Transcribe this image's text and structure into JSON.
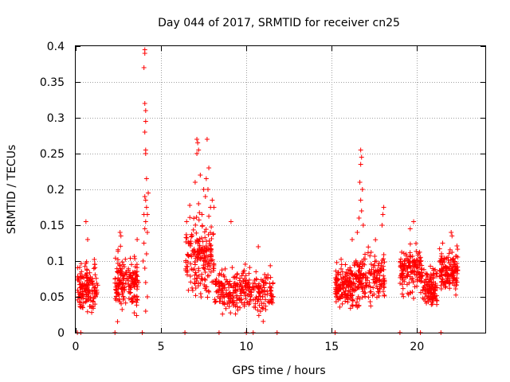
{
  "chart_data": {
    "type": "scatter",
    "title": "Day 044 of 2017, SRMTID for receiver cn25",
    "xlabel": "GPS time / hours",
    "ylabel": "SRMTID / TECUs",
    "xlim": [
      0,
      24
    ],
    "ylim": [
      0,
      0.4
    ],
    "xticks": [
      0,
      5,
      10,
      15,
      20
    ],
    "xtick_labels": [
      "0",
      "5",
      "10",
      "15",
      "20"
    ],
    "yticks": [
      0,
      0.05,
      0.1,
      0.15,
      0.2,
      0.25,
      0.3,
      0.35,
      0.4
    ],
    "ytick_labels": [
      "0",
      "0.05",
      "0.1",
      "0.15",
      "0.2",
      "0.25",
      "0.3",
      "0.35",
      "0.4"
    ],
    "grid": true,
    "marker": "+",
    "color": "#ff0000",
    "clusters": [
      {
        "x_start": 0.1,
        "x_end": 1.3,
        "y_center": 0.06,
        "y_spread": 0.03,
        "n": 150
      },
      {
        "x_start": 2.3,
        "x_end": 3.7,
        "y_center": 0.07,
        "y_spread": 0.035,
        "n": 180
      },
      {
        "x_start": 6.4,
        "x_end": 8.1,
        "y_center": 0.11,
        "y_spread": 0.05,
        "n": 200
      },
      {
        "x_start": 8.1,
        "x_end": 10.0,
        "y_center": 0.06,
        "y_spread": 0.03,
        "n": 180
      },
      {
        "x_start": 10.0,
        "x_end": 11.6,
        "y_center": 0.055,
        "y_spread": 0.025,
        "n": 120
      },
      {
        "x_start": 15.2,
        "x_end": 16.3,
        "y_center": 0.065,
        "y_spread": 0.03,
        "n": 150
      },
      {
        "x_start": 16.3,
        "x_end": 18.1,
        "y_center": 0.075,
        "y_spread": 0.035,
        "n": 190
      },
      {
        "x_start": 19.0,
        "x_end": 20.3,
        "y_center": 0.085,
        "y_spread": 0.03,
        "n": 150
      },
      {
        "x_start": 20.3,
        "x_end": 21.2,
        "y_center": 0.065,
        "y_spread": 0.025,
        "n": 110
      },
      {
        "x_start": 21.3,
        "x_end": 22.4,
        "y_center": 0.085,
        "y_spread": 0.025,
        "n": 140
      }
    ],
    "peaks": [
      {
        "x": 4.05,
        "y": 0.395
      },
      {
        "x": 4.05,
        "y": 0.39
      },
      {
        "x": 4.0,
        "y": 0.37
      },
      {
        "x": 4.05,
        "y": 0.32
      },
      {
        "x": 4.1,
        "y": 0.31
      },
      {
        "x": 4.1,
        "y": 0.295
      },
      {
        "x": 4.05,
        "y": 0.28
      },
      {
        "x": 4.1,
        "y": 0.255
      },
      {
        "x": 4.1,
        "y": 0.25
      },
      {
        "x": 4.15,
        "y": 0.215
      },
      {
        "x": 4.05,
        "y": 0.19
      },
      {
        "x": 4.1,
        "y": 0.185
      },
      {
        "x": 4.15,
        "y": 0.175
      },
      {
        "x": 4.0,
        "y": 0.165
      },
      {
        "x": 4.1,
        "y": 0.155
      },
      {
        "x": 4.05,
        "y": 0.145
      },
      {
        "x": 4.2,
        "y": 0.14
      },
      {
        "x": 4.0,
        "y": 0.125
      },
      {
        "x": 4.15,
        "y": 0.11
      },
      {
        "x": 4.05,
        "y": 0.09
      },
      {
        "x": 4.1,
        "y": 0.07
      },
      {
        "x": 4.2,
        "y": 0.05
      },
      {
        "x": 4.1,
        "y": 0.03
      },
      {
        "x": 3.95,
        "y": 0.1
      },
      {
        "x": 4.25,
        "y": 0.195
      },
      {
        "x": 4.2,
        "y": 0.165
      },
      {
        "x": 7.1,
        "y": 0.27
      },
      {
        "x": 7.15,
        "y": 0.265
      },
      {
        "x": 7.2,
        "y": 0.255
      },
      {
        "x": 7.1,
        "y": 0.25
      },
      {
        "x": 7.7,
        "y": 0.27
      },
      {
        "x": 7.3,
        "y": 0.22
      },
      {
        "x": 7.0,
        "y": 0.21
      },
      {
        "x": 7.5,
        "y": 0.2
      },
      {
        "x": 7.8,
        "y": 0.23
      },
      {
        "x": 7.6,
        "y": 0.19
      },
      {
        "x": 7.2,
        "y": 0.18
      },
      {
        "x": 7.9,
        "y": 0.175
      },
      {
        "x": 7.4,
        "y": 0.165
      },
      {
        "x": 7.65,
        "y": 0.215
      },
      {
        "x": 7.75,
        "y": 0.2
      },
      {
        "x": 16.7,
        "y": 0.255
      },
      {
        "x": 16.75,
        "y": 0.245
      },
      {
        "x": 16.7,
        "y": 0.235
      },
      {
        "x": 16.65,
        "y": 0.21
      },
      {
        "x": 16.8,
        "y": 0.2
      },
      {
        "x": 16.7,
        "y": 0.185
      },
      {
        "x": 16.75,
        "y": 0.17
      },
      {
        "x": 16.6,
        "y": 0.16
      },
      {
        "x": 16.85,
        "y": 0.15
      },
      {
        "x": 16.5,
        "y": 0.14
      },
      {
        "x": 18.05,
        "y": 0.175
      },
      {
        "x": 18.0,
        "y": 0.165
      },
      {
        "x": 17.95,
        "y": 0.15
      },
      {
        "x": 0.6,
        "y": 0.155
      },
      {
        "x": 2.6,
        "y": 0.14
      },
      {
        "x": 2.65,
        "y": 0.135
      },
      {
        "x": 3.6,
        "y": 0.13
      },
      {
        "x": 6.5,
        "y": 0.155
      },
      {
        "x": 9.1,
        "y": 0.155
      },
      {
        "x": 8.1,
        "y": 0.175
      },
      {
        "x": 8.0,
        "y": 0.185
      },
      {
        "x": 10.7,
        "y": 0.12
      },
      {
        "x": 16.2,
        "y": 0.13
      },
      {
        "x": 19.8,
        "y": 0.155
      },
      {
        "x": 19.6,
        "y": 0.145
      },
      {
        "x": 22.0,
        "y": 0.14
      },
      {
        "x": 22.05,
        "y": 0.135
      },
      {
        "x": 21.5,
        "y": 0.125
      },
      {
        "x": 0.7,
        "y": 0.13
      }
    ],
    "zero_marks": [
      0.1,
      0.3,
      2.3,
      3.9,
      6.4,
      8.4,
      10.0,
      10.4,
      11.8,
      15.2,
      19.0,
      20.2,
      21.4
    ]
  }
}
